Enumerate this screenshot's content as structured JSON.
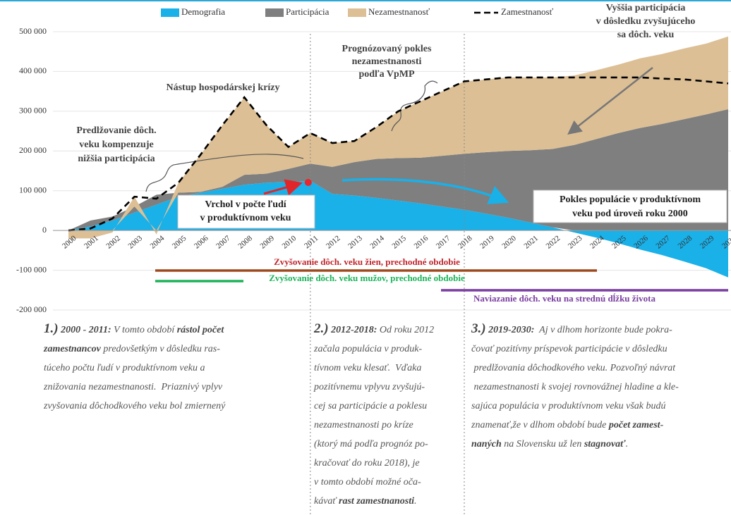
{
  "chart_data": {
    "type": "area",
    "categories": [
      "2000",
      "2001",
      "2002",
      "2003",
      "2004",
      "2005",
      "2006",
      "2007",
      "2008",
      "2009",
      "2010",
      "2011",
      "2012",
      "2013",
      "2014",
      "2015",
      "2016",
      "2017",
      "2018",
      "2019",
      "2020",
      "2021",
      "2022",
      "2023",
      "2024",
      "2025",
      "2026",
      "2027",
      "2028",
      "2029",
      "2030"
    ],
    "series": [
      {
        "name": "Demografia",
        "color": "#1ab0e8",
        "values": [
          0,
          10000,
          25000,
          45000,
          65000,
          85000,
          95000,
          105000,
          115000,
          120000,
          122000,
          125000,
          92000,
          88000,
          82000,
          75000,
          68000,
          60000,
          52000,
          42000,
          32000,
          20000,
          8000,
          -5000,
          -18000,
          -32000,
          -48000,
          -62000,
          -78000,
          -95000,
          -118000
        ]
      },
      {
        "name": "Participácia",
        "color": "#7f7f7f",
        "values": [
          0,
          15000,
          10000,
          15000,
          25000,
          10000,
          2000,
          5000,
          25000,
          23000,
          33000,
          43000,
          68000,
          84000,
          98000,
          107000,
          115000,
          128000,
          141000,
          155000,
          168000,
          182000,
          197000,
          215000,
          230000,
          245000,
          258000,
          268000,
          280000,
          292000,
          305000
        ]
      },
      {
        "name": "Nezamestnanosť",
        "color": "#dcbf95",
        "values": [
          -20000,
          -20000,
          -5000,
          25000,
          -10000,
          25000,
          93000,
          155000,
          195000,
          122000,
          55000,
          77000,
          60000,
          53000,
          80000,
          118000,
          142000,
          162000,
          182000,
          183000,
          185000,
          183000,
          180000,
          175000,
          173000,
          172000,
          175000,
          176000,
          178000,
          178000,
          183000
        ]
      },
      {
        "name": "Zamestnanosť",
        "type": "line",
        "color": "#000000",
        "dashed": true,
        "values": [
          0,
          5000,
          30000,
          85000,
          80000,
          120000,
          190000,
          265000,
          335000,
          265000,
          210000,
          245000,
          220000,
          225000,
          260000,
          300000,
          325000,
          350000,
          375000,
          380000,
          385000,
          385000,
          385000,
          385000,
          385000,
          385000,
          385000,
          382000,
          380000,
          375000,
          370000
        ]
      }
    ],
    "ylim": [
      -200000,
      500000
    ],
    "yticks": [
      {
        "value": 500000,
        "label": "500 000"
      },
      {
        "value": 400000,
        "label": "400 000"
      },
      {
        "value": 300000,
        "label": "300 000"
      },
      {
        "value": 200000,
        "label": "200 000"
      },
      {
        "value": 100000,
        "label": "100 000"
      },
      0,
      {
        "value": -100000,
        "label": "-100 000"
      },
      {
        "value": -200000,
        "label": "-200 000"
      }
    ],
    "grid": true,
    "legend": "top",
    "annotations": [
      {
        "lines": [
          "Nástup hospodárskej krízy"
        ]
      },
      {
        "lines": [
          "Predlžovanie dôch.",
          "veku kompenzuje",
          "nižšia participácia"
        ]
      },
      {
        "lines": [
          "Prognózovaný pokles",
          "nezamestnanosti",
          "podľa VpMP"
        ]
      },
      {
        "lines": [
          "Vyššia participácia",
          "v dôsledku zvyšujúceho",
          "sa dôch. veku"
        ]
      },
      {
        "lines": [
          "Vrchol v počte ľudí",
          "v produktívnom veku"
        ]
      },
      {
        "lines": [
          "Pokles populácie v produktívnom",
          "veku pod úroveň roku 2000"
        ]
      }
    ],
    "timelines": [
      {
        "label": "Zvyšovanie dôch. veku žien, prechodné obdobie",
        "color": "#9e4a1e",
        "text_color": "#c0272d"
      },
      {
        "label": "Zvyšovanie dôch. veku mužov, prechodné obdobie",
        "color": "#1db35a",
        "text_color": "#1db35a"
      },
      {
        "label": "Naviazanie dôch. veku na strednú dĺžku života",
        "color": "#7b3fa0",
        "text_color": "#7b3fa0"
      }
    ]
  },
  "notes": [
    {
      "number": "1.)",
      "lines": [
        [
          {
            "text": " 2000 - 2011:",
            "bold": true
          },
          " V tomto období ",
          {
            "text": "rástol počet",
            "bold": true
          }
        ],
        [
          {
            "text": "zamestnancov",
            "bold": true
          },
          " predovšetkým v dôsledku ras-"
        ],
        [
          "túceho počtu ľudí v produktívnom veku a"
        ],
        [
          "znižovania nezamestnanosti.  Priaznivý vplyv"
        ],
        [
          "zvyšovania dôchodkového veku bol zmiernený"
        ]
      ]
    },
    {
      "number": "2.)",
      "lines": [
        [
          {
            "text": " 2012-2018:",
            "bold": true
          },
          " Od roku 2012"
        ],
        [
          "začala populácia v produk-"
        ],
        [
          "tívnom veku klesať.  Vďaka"
        ],
        [
          "pozitívnemu vplyvu zvyšujú-"
        ],
        [
          "cej sa participácie a poklesu"
        ],
        [
          "nezamestnanosti po kríze"
        ],
        [
          "(ktorý má podľa prognóz po-"
        ],
        [
          "kračovať do roku 2018), je"
        ],
        [
          "v tomto období možné oča-"
        ],
        [
          "kávať ",
          {
            "text": "rast zamestnanosti",
            "bold": true
          },
          "."
        ]
      ]
    },
    {
      "number": "3.)",
      "lines": [
        [
          {
            "text": " 2019-2030:",
            "bold": true
          },
          "  Aj v dlhom horizonte bude pokra-"
        ],
        [
          "čovať pozitívny príspevok participácie v dôsledku"
        ],
        [
          " predlžovania dôchodkového veku. Pozvoľný návrat"
        ],
        [
          " nezamestnanosti k svojej rovnovážnej hladine a kle-"
        ],
        [
          "sajúca populácia v produktívnom veku však budú"
        ],
        [
          "znamenať,že v dlhom období bude ",
          {
            "text": "počet zamest-",
            "bold": true
          }
        ],
        [
          {
            "text": "naných",
            "bold": true
          },
          " na Slovensku už len ",
          {
            "text": "stagnovať",
            "bold": true
          },
          "."
        ]
      ]
    }
  ]
}
